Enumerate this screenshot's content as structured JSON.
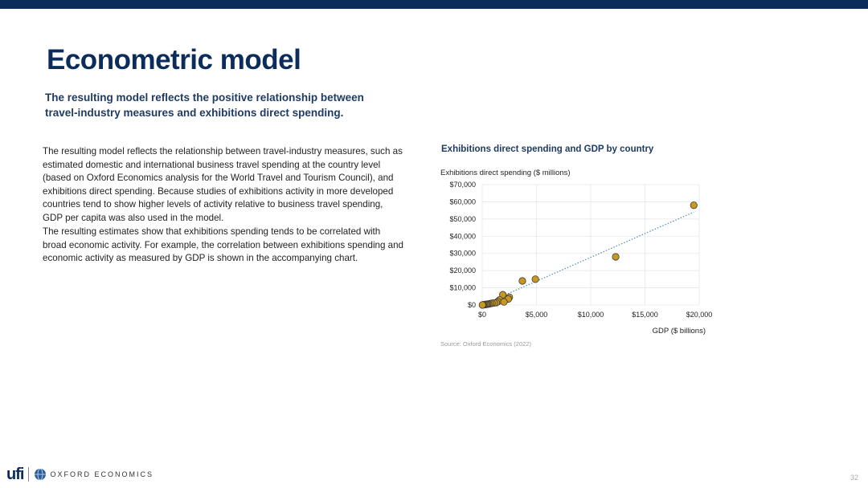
{
  "slide": {
    "title": "Econometric model",
    "subtitle": "The resulting model reflects the positive relationship between travel-industry measures and exhibitions direct spending.",
    "paragraphs": [
      "The resulting model reflects the relationship between travel-industry measures, such as estimated domestic and international business travel spending at the country level (based on Oxford Economics analysis for the World Travel and Tourism Council), and exhibitions direct spending. Because studies of exhibitions activity in more developed countries tend to show higher levels of activity relative to business travel spending, GDP per capita was also used in the model.",
      "The resulting estimates show that exhibitions spending tends to be correlated with broad economic activity. For example, the correlation between exhibitions spending and economic activity as measured by GDP is shown in the accompanying chart."
    ],
    "source": "Source: Oxford Economics (2022)",
    "page_number": "32"
  },
  "footer": {
    "logo_ufi": "ufi",
    "logo_oxford": "OXFORD ECONOMICS"
  },
  "chart_data": {
    "type": "scatter",
    "title": "Exhibitions direct spending and GDP by country",
    "ylabel": "Exhibitions direct spending ($ millions)",
    "xlabel": "GDP ($ billions)",
    "xlim": [
      0,
      20000
    ],
    "ylim": [
      0,
      70000
    ],
    "x_ticks": [
      0,
      5000,
      10000,
      15000,
      20000
    ],
    "x_tick_labels": [
      "$0",
      "$5,000",
      "$10,000",
      "$15,000",
      "$20,000"
    ],
    "y_ticks": [
      0,
      10000,
      20000,
      30000,
      40000,
      50000,
      60000,
      70000
    ],
    "y_tick_labels": [
      "$0",
      "$10,000",
      "$20,000",
      "$30,000",
      "$40,000",
      "$50,000",
      "$60,000",
      "$70,000"
    ],
    "grid": true,
    "trendline": {
      "style": "dotted",
      "color": "#4a90a4",
      "from": [
        0,
        0
      ],
      "to": [
        19500,
        54000
      ]
    },
    "marker_color": "#c9981f",
    "points": [
      {
        "x": 19500,
        "y": 58000
      },
      {
        "x": 12300,
        "y": 28000
      },
      {
        "x": 4900,
        "y": 15000
      },
      {
        "x": 3700,
        "y": 14000
      },
      {
        "x": 1900,
        "y": 6000
      },
      {
        "x": 2500,
        "y": 4500
      },
      {
        "x": 2400,
        "y": 3500
      },
      {
        "x": 1600,
        "y": 3000
      },
      {
        "x": 1450,
        "y": 2000
      },
      {
        "x": 2000,
        "y": 1800
      },
      {
        "x": 1300,
        "y": 1400
      },
      {
        "x": 1100,
        "y": 1200
      },
      {
        "x": 900,
        "y": 1000
      },
      {
        "x": 750,
        "y": 800
      },
      {
        "x": 600,
        "y": 600
      },
      {
        "x": 500,
        "y": 500
      },
      {
        "x": 400,
        "y": 400
      },
      {
        "x": 300,
        "y": 300
      },
      {
        "x": 200,
        "y": 250
      },
      {
        "x": 100,
        "y": 150
      },
      {
        "x": 50,
        "y": 80
      },
      {
        "x": 20,
        "y": 30
      }
    ]
  }
}
